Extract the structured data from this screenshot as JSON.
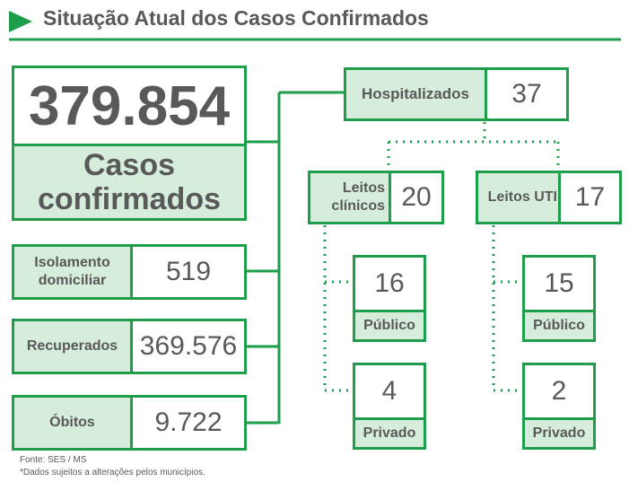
{
  "title": "Situação Atual dos Casos Confirmados",
  "total": {
    "value": "379.854",
    "label": "Casos confirmados"
  },
  "status": [
    {
      "label": "Isolamento domiciliar",
      "value": "519"
    },
    {
      "label": "Recuperados",
      "value": "369.576"
    },
    {
      "label": "Óbitos",
      "value": "9.722"
    }
  ],
  "hospitalized": {
    "label": "Hospitalizados",
    "value": "37"
  },
  "beds": [
    {
      "label": "Leitos clínicos",
      "value": "20",
      "public": {
        "value": "16",
        "label": "Público"
      },
      "private": {
        "value": "4",
        "label": "Privado"
      }
    },
    {
      "label": "Leitos UTI",
      "value": "17",
      "public": {
        "value": "15",
        "label": "Público"
      },
      "private": {
        "value": "2",
        "label": "Privado"
      }
    }
  ],
  "footer": [
    "Fonte: SES / MS",
    "*Dados sujeitos a alterações pelos municípios."
  ]
}
